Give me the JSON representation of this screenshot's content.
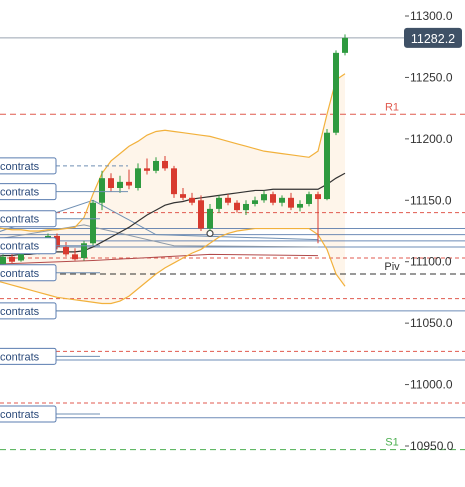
{
  "chart_data": {
    "type": "candlestick",
    "y_axis": {
      "ticks": [
        "11300.0",
        "11250.0",
        "11200.0",
        "11150.0",
        "11100.0",
        "11050.0",
        "11000.0",
        "10950.0"
      ],
      "tick_values": [
        11300,
        11250,
        11200,
        11150,
        11100,
        11050,
        11000,
        10950
      ],
      "range": [
        10920,
        11315
      ],
      "grid": false
    },
    "last_price": {
      "label": "11282.2",
      "value": 11282.2,
      "color": "#3f5166"
    },
    "pivot_levels": [
      {
        "label": "R1",
        "value": 11220,
        "color": "#e05a4f",
        "style": "dashed"
      },
      {
        "label": "Piv",
        "value": 11090,
        "color": "#333333",
        "style": "dashed"
      },
      {
        "label": "S1",
        "value": 10947,
        "color": "#4caf50",
        "style": "dashed"
      }
    ],
    "red_dashed_levels": [
      11140,
      11103,
      11070,
      11027,
      10985
    ],
    "blue_levels": [
      11127,
      11122,
      11117,
      11112,
      11060,
      11020,
      10973
    ],
    "position_tags": [
      {
        "label": "contrats",
        "value": 11178
      },
      {
        "label": "contrats",
        "value": 11157
      },
      {
        "label": "contrats",
        "value": 11135
      },
      {
        "label": "contrats",
        "value": 11113
      },
      {
        "label": "contrats",
        "value": 11091
      },
      {
        "label": "contrats",
        "value": 11060
      },
      {
        "label": "contrats",
        "value": 11023
      },
      {
        "label": "contrats",
        "value": 10976
      }
    ],
    "candles": [
      {
        "o": 11101,
        "h": 11104,
        "c": 11098,
        "l": 11096
      },
      {
        "o": 11098,
        "h": 11106,
        "c": 11104,
        "l": 11097
      },
      {
        "o": 11104,
        "h": 11110,
        "c": 11100,
        "l": 11099
      },
      {
        "o": 11101,
        "h": 11113,
        "c": 11112,
        "l": 11100
      },
      {
        "o": 11112,
        "h": 11114,
        "c": 11108,
        "l": 11106
      },
      {
        "o": 11108,
        "h": 11118,
        "c": 11116,
        "l": 11106
      },
      {
        "o": 11116,
        "h": 11123,
        "c": 11121,
        "l": 11113
      },
      {
        "o": 11121,
        "h": 11123,
        "c": 11112,
        "l": 11110
      },
      {
        "o": 11112,
        "h": 11116,
        "c": 11106,
        "l": 11104
      },
      {
        "o": 11106,
        "h": 11111,
        "c": 11102,
        "l": 11101
      },
      {
        "o": 11103,
        "h": 11117,
        "c": 11115,
        "l": 11101
      },
      {
        "o": 11115,
        "h": 11150,
        "c": 11148,
        "l": 11113
      },
      {
        "o": 11148,
        "h": 11174,
        "c": 11168,
        "l": 11142
      },
      {
        "o": 11168,
        "h": 11172,
        "c": 11160,
        "l": 11157
      },
      {
        "o": 11160,
        "h": 11170,
        "c": 11165,
        "l": 11156
      },
      {
        "o": 11165,
        "h": 11175,
        "c": 11162,
        "l": 11159
      },
      {
        "o": 11160,
        "h": 11180,
        "c": 11176,
        "l": 11158
      },
      {
        "o": 11176,
        "h": 11184,
        "c": 11174,
        "l": 11171
      },
      {
        "o": 11174,
        "h": 11185,
        "c": 11182,
        "l": 11172
      },
      {
        "o": 11182,
        "h": 11186,
        "c": 11176,
        "l": 11174
      },
      {
        "o": 11176,
        "h": 11178,
        "c": 11155,
        "l": 11152
      },
      {
        "o": 11155,
        "h": 11160,
        "c": 11152,
        "l": 11150
      },
      {
        "o": 11152,
        "h": 11156,
        "c": 11148,
        "l": 11146
      },
      {
        "o": 11150,
        "h": 11154,
        "c": 11127,
        "l": 11125
      },
      {
        "o": 11127,
        "h": 11147,
        "c": 11143,
        "l": 11125
      },
      {
        "o": 11143,
        "h": 11154,
        "c": 11152,
        "l": 11140
      },
      {
        "o": 11152,
        "h": 11155,
        "c": 11148,
        "l": 11146
      },
      {
        "o": 11148,
        "h": 11150,
        "c": 11142,
        "l": 11140
      },
      {
        "o": 11142,
        "h": 11150,
        "c": 11147,
        "l": 11138
      },
      {
        "o": 11147,
        "h": 11153,
        "c": 11150,
        "l": 11145
      },
      {
        "o": 11150,
        "h": 11158,
        "c": 11155,
        "l": 11148
      },
      {
        "o": 11155,
        "h": 11157,
        "c": 11148,
        "l": 11146
      },
      {
        "o": 11148,
        "h": 11154,
        "c": 11152,
        "l": 11145
      },
      {
        "o": 11152,
        "h": 11156,
        "c": 11144,
        "l": 11142
      },
      {
        "o": 11144,
        "h": 11150,
        "c": 11147,
        "l": 11141
      },
      {
        "o": 11147,
        "h": 11157,
        "c": 11155,
        "l": 11145
      },
      {
        "o": 11155,
        "h": 11157,
        "c": 11151,
        "l": 11115
      },
      {
        "o": 11151,
        "h": 11208,
        "c": 11205,
        "l": 11150
      },
      {
        "o": 11205,
        "h": 11272,
        "c": 11270,
        "l": 11203
      },
      {
        "o": 11270,
        "h": 11285,
        "c": 11282.2,
        "l": 11268
      }
    ],
    "bollinger": {
      "color": "#f2b13c",
      "upper": [
        11128,
        11127,
        11126,
        11126,
        11125,
        11125,
        11126,
        11126,
        11127,
        11128,
        11136,
        11155,
        11172,
        11182,
        11188,
        11194,
        11198,
        11203,
        11206,
        11207,
        11206,
        11205,
        11204,
        11203,
        11202,
        11200,
        11198,
        11196,
        11194,
        11192,
        11190,
        11189,
        11188,
        11187,
        11186,
        11185,
        11190,
        11220,
        11248,
        11253
      ],
      "lower": [
        11085,
        11083,
        11081,
        11079,
        11077,
        11075,
        11073,
        11071,
        11070,
        11069,
        11068,
        11067,
        11066,
        11066,
        11068,
        11072,
        11078,
        11084,
        11090,
        11095,
        11099,
        11103,
        11107,
        11110,
        11115,
        11120,
        11123,
        11125,
        11126,
        11127,
        11127,
        11127,
        11127,
        11127,
        11127,
        11127,
        11122,
        11110,
        11090,
        11080
      ]
    },
    "moving_average": {
      "color": "#333333",
      "values": [
        11104,
        11105,
        11105,
        11106,
        11106,
        11107,
        11107,
        11108,
        11108,
        11108,
        11109,
        11112,
        11116,
        11120,
        11124,
        11128,
        11133,
        11138,
        11142,
        11146,
        11148,
        11149,
        11151,
        11152,
        11153,
        11154,
        11155,
        11156,
        11157,
        11158,
        11158,
        11159,
        11159,
        11159,
        11159,
        11159,
        11159,
        11163,
        11168,
        11172
      ]
    },
    "thin_lines": [
      {
        "color": "#6f8fb3",
        "points": [
          [
            0,
            11123
          ],
          [
            11,
            11150
          ],
          [
            18,
            11122
          ],
          [
            36,
            11118
          ]
        ]
      },
      {
        "color": "#8e9aa8",
        "points": [
          [
            0,
            11118
          ],
          [
            10,
            11130
          ],
          [
            20,
            11113
          ],
          [
            36,
            11112
          ]
        ]
      },
      {
        "color": "#b34a4a",
        "points": [
          [
            0,
            11098
          ],
          [
            11,
            11101
          ],
          [
            24,
            11106
          ],
          [
            36,
            11105
          ]
        ]
      }
    ],
    "annotation_marker": {
      "index": 24,
      "value": 11123
    }
  }
}
